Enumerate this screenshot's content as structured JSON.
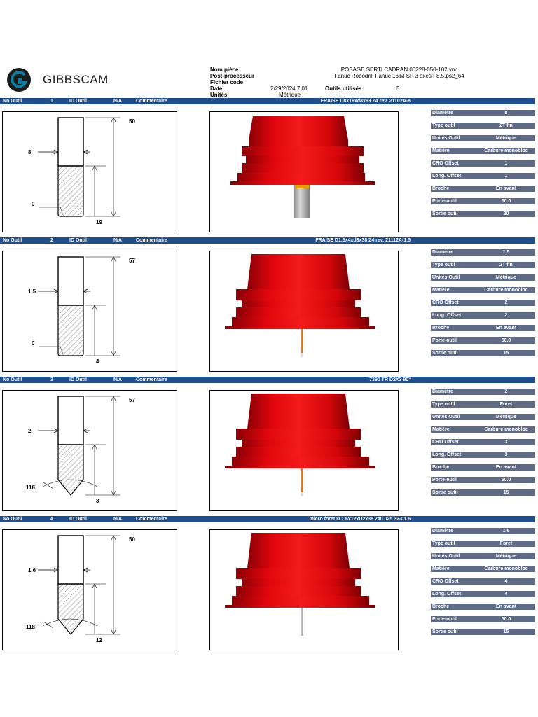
{
  "brand": {
    "name": "GIBBSCAM",
    "color": "#0e7ea1"
  },
  "header": {
    "labels": [
      "Nom pièce",
      "Post-processeur",
      "Fichier code",
      "Date",
      "Unités"
    ],
    "part_name": "POSAGE SERTI CADRAN 00228-050-102.vnc",
    "post_processor": "Fanuc Robodrill Fanuc 16iM SP 3 axes F8.5.ps2_64",
    "date": "2/29/2024 7:01",
    "tools_used_label": "Outils utilisés",
    "tools_used": "5",
    "units": "Métrique"
  },
  "bar_labels": {
    "no": "No Outil",
    "id": "ID Outil",
    "na": "N/A",
    "comment": "Commentaire"
  },
  "param_labels": [
    "Diamètre",
    "Type outil",
    "Unités  Outil",
    "Matière",
    "CRO Offset",
    "Long. Offset",
    "Broche",
    "Porte-outil",
    "Sortie outil"
  ],
  "tools": [
    {
      "no": "1",
      "comment": "FRAISE D8x19xd8x63 Z4 rev. 21102A-8",
      "dims": {
        "length": "50",
        "diameter": "8",
        "radius": "0",
        "flute": "19",
        "angle": ""
      },
      "kind": "mill",
      "shank_color": "#d8d8d8",
      "params": [
        "8",
        "2T fin",
        "Métrique",
        "Carbure monobloc",
        "1",
        "1",
        "En avant",
        "50.0",
        "20"
      ]
    },
    {
      "no": "2",
      "comment": "FRAISE D1.5x4xd3x38 Z4 rev.  21112A-1.5",
      "dims": {
        "length": "57",
        "diameter": "1.5",
        "radius": "0",
        "flute": "4",
        "angle": ""
      },
      "kind": "mill",
      "shank_color": "#e2821c",
      "params": [
        "1.5",
        "2T fin",
        "Métrique",
        "Carbure monobloc",
        "2",
        "2",
        "En avant",
        "50.0",
        "15"
      ]
    },
    {
      "no": "3",
      "comment": "7390 TR D2X3 90°",
      "dims": {
        "length": "57",
        "diameter": "2",
        "radius": "",
        "flute": "3",
        "angle": "118"
      },
      "kind": "drill",
      "shank_color": "#e2821c",
      "params": [
        "2",
        "Foret",
        "Métrique",
        "Carbure monobloc",
        "3",
        "3",
        "En avant",
        "50.0",
        "15"
      ]
    },
    {
      "no": "4",
      "comment": "micro foret  D.1.6x12xD2x38 240.025 32-01.6",
      "dims": {
        "length": "50",
        "diameter": "1.6",
        "radius": "",
        "flute": "12",
        "angle": "118"
      },
      "kind": "drill",
      "shank_color": "#cfcfcf",
      "params": [
        "1.6",
        "Foret",
        "Métrique",
        "Carbure monobloc",
        "4",
        "4",
        "En avant",
        "50.0",
        "15"
      ]
    }
  ]
}
